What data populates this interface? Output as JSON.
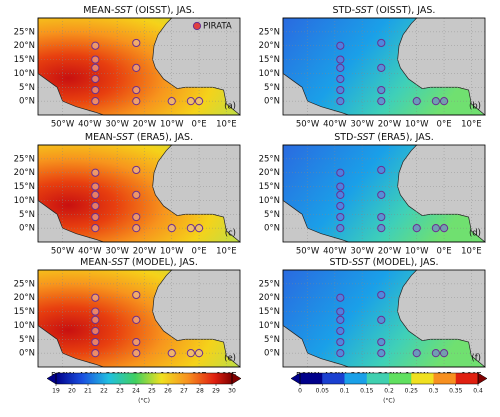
{
  "panels": [
    {
      "title": [
        "MEAN-",
        "SST",
        " (OISST), JAS."
      ],
      "letter": "(a)"
    },
    {
      "title": [
        "STD-",
        "SST",
        " (OISST), JAS."
      ],
      "letter": "(b)"
    },
    {
      "title": [
        "MEAN-",
        "SST",
        " (ERA5), JAS."
      ],
      "letter": "(c)"
    },
    {
      "title": [
        "STD-",
        "SST",
        " (ERA5), JAS."
      ],
      "letter": "(d)"
    },
    {
      "title": [
        "MEAN-",
        "SST",
        " (MODEL), JAS."
      ],
      "letter": "(e)"
    },
    {
      "title": [
        "STD-",
        "SST",
        " (MODEL), JAS."
      ],
      "letter": "(f)"
    }
  ],
  "legend": "PIRATA",
  "extent": {
    "lon": [
      -59,
      15
    ],
    "lat": [
      -5,
      30
    ]
  },
  "lat_ticks": [
    {
      "value": 25,
      "label": "25°N"
    },
    {
      "value": 20,
      "label": "20°N"
    },
    {
      "value": 15,
      "label": "15°N"
    },
    {
      "value": 10,
      "label": "10°N"
    },
    {
      "value": 5,
      "label": "5°N"
    },
    {
      "value": 0,
      "label": "0°N"
    }
  ],
  "lon_ticks": [
    {
      "value": -50,
      "label": "50°W"
    },
    {
      "value": -40,
      "label": "40°W"
    },
    {
      "value": -30,
      "label": "30°W"
    },
    {
      "value": -20,
      "label": "20°W"
    },
    {
      "value": -10,
      "label": "10°W"
    },
    {
      "value": 0,
      "label": "0°E"
    },
    {
      "value": 10,
      "label": "10°E"
    }
  ],
  "buoys": [
    [
      -38,
      20
    ],
    [
      -38,
      15
    ],
    [
      -38,
      12
    ],
    [
      -38,
      8
    ],
    [
      -38,
      4
    ],
    [
      -38,
      0
    ],
    [
      -23,
      21
    ],
    [
      -23,
      12
    ],
    [
      -23,
      4
    ],
    [
      -23,
      0
    ],
    [
      -10,
      0
    ],
    [
      -3,
      0
    ],
    [
      0,
      0
    ]
  ],
  "colorbars": [
    {
      "ticks": [
        19,
        20,
        21,
        22,
        23,
        24,
        25,
        26,
        27,
        28,
        29,
        30
      ],
      "unit": "(°C)"
    },
    {
      "ticks": [
        0,
        0.05,
        0.1,
        0.15,
        0.2,
        0.25,
        0.3,
        0.35,
        0.4
      ],
      "unit": "(°C)"
    }
  ]
}
